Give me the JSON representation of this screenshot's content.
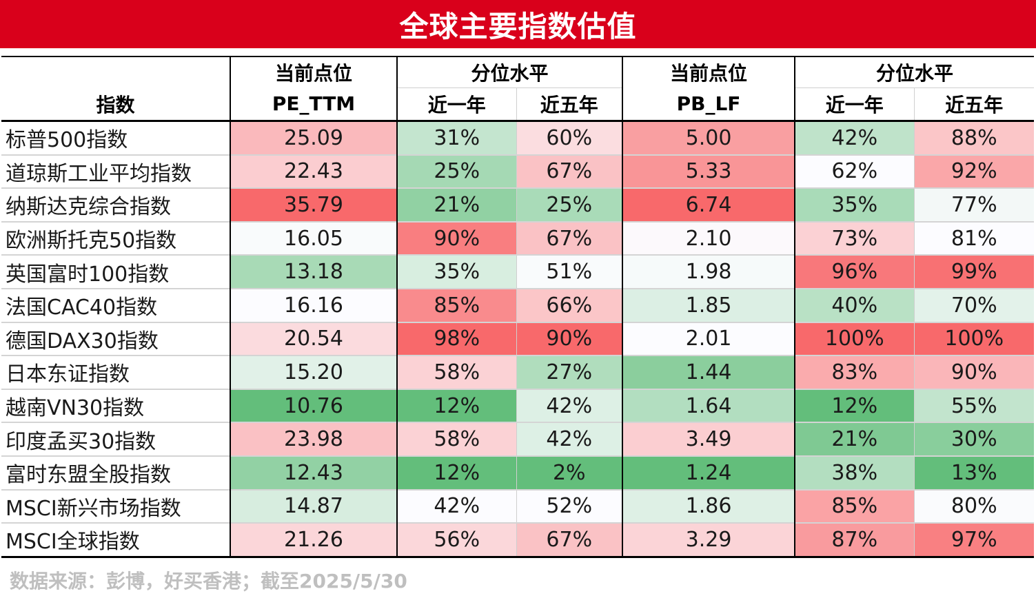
{
  "title": "全球主要指数估值",
  "header": {
    "index_label": "指数",
    "pe_group": "当前点位",
    "pe_metric": "PE_TTM",
    "pe_pct_group": "分位水平",
    "pb_group": "当前点位",
    "pb_metric": "PB_LF",
    "pb_pct_group": "分位水平",
    "one_year": "近一年",
    "five_year": "近五年"
  },
  "colors": {
    "title_bg": "#d9001b",
    "high_red": "#f8696b",
    "neutral": "#fcfcff",
    "low_green": "#63be7b"
  },
  "rows": [
    {
      "name": "标普500指数",
      "pe": "25.09",
      "pe_1y": "31%",
      "pe_5y": "60%",
      "pb": "5.00",
      "pb_1y": "42%",
      "pb_5y": "88%"
    },
    {
      "name": "道琼斯工业平均指数",
      "pe": "22.43",
      "pe_1y": "25%",
      "pe_5y": "67%",
      "pb": "5.33",
      "pb_1y": "62%",
      "pb_5y": "92%"
    },
    {
      "name": "纳斯达克综合指数",
      "pe": "35.79",
      "pe_1y": "21%",
      "pe_5y": "25%",
      "pb": "6.74",
      "pb_1y": "35%",
      "pb_5y": "77%"
    },
    {
      "name": "欧洲斯托克50指数",
      "pe": "16.05",
      "pe_1y": "90%",
      "pe_5y": "67%",
      "pb": "2.10",
      "pb_1y": "73%",
      "pb_5y": "81%"
    },
    {
      "name": "英国富时100指数",
      "pe": "13.18",
      "pe_1y": "35%",
      "pe_5y": "51%",
      "pb": "1.98",
      "pb_1y": "96%",
      "pb_5y": "99%"
    },
    {
      "name": "法国CAC40指数",
      "pe": "16.16",
      "pe_1y": "85%",
      "pe_5y": "66%",
      "pb": "1.85",
      "pb_1y": "40%",
      "pb_5y": "70%"
    },
    {
      "name": "德国DAX30指数",
      "pe": "20.54",
      "pe_1y": "98%",
      "pe_5y": "90%",
      "pb": "2.01",
      "pb_1y": "100%",
      "pb_5y": "100%"
    },
    {
      "name": "日本东证指数",
      "pe": "15.20",
      "pe_1y": "58%",
      "pe_5y": "27%",
      "pb": "1.44",
      "pb_1y": "83%",
      "pb_5y": "90%"
    },
    {
      "name": "越南VN30指数",
      "pe": "10.76",
      "pe_1y": "12%",
      "pe_5y": "42%",
      "pb": "1.64",
      "pb_1y": "12%",
      "pb_5y": "55%"
    },
    {
      "name": "印度孟买30指数",
      "pe": "23.98",
      "pe_1y": "58%",
      "pe_5y": "42%",
      "pb": "3.49",
      "pb_1y": "21%",
      "pb_5y": "30%"
    },
    {
      "name": "富时东盟全股指数",
      "pe": "12.43",
      "pe_1y": "12%",
      "pe_5y": "2%",
      "pb": "1.24",
      "pb_1y": "38%",
      "pb_5y": "13%"
    },
    {
      "name": "MSCI新兴市场指数",
      "pe": "14.87",
      "pe_1y": "42%",
      "pe_5y": "52%",
      "pb": "1.86",
      "pb_1y": "85%",
      "pb_5y": "80%"
    },
    {
      "name": "MSCI全球指数",
      "pe": "21.26",
      "pe_1y": "56%",
      "pe_5y": "67%",
      "pb": "3.29",
      "pb_1y": "87%",
      "pb_5y": "97%"
    }
  ],
  "source": "数据来源：彭博，好买香港；截至2025/5/30"
}
